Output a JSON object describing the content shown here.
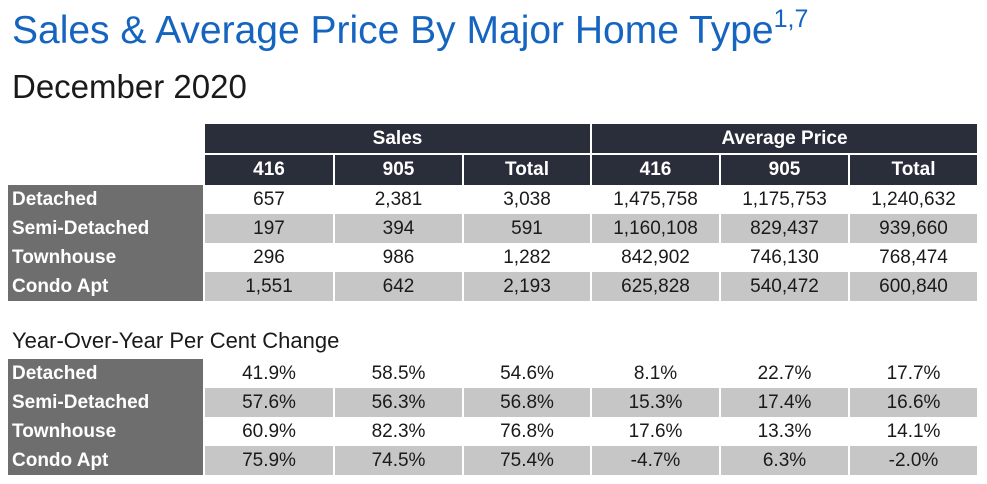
{
  "header": {
    "title": "Sales & Average Price By Major Home Type",
    "title_superscript": "1,7",
    "subtitle": "December 2020"
  },
  "sales_table": {
    "groups": [
      "Sales",
      "Average Price"
    ],
    "columns": [
      "416",
      "905",
      "Total",
      "416",
      "905",
      "Total"
    ],
    "rows": [
      {
        "label": "Detached",
        "values": [
          "657",
          "2,381",
          "3,038",
          "1,475,758",
          "1,175,753",
          "1,240,632"
        ]
      },
      {
        "label": "Semi-Detached",
        "values": [
          "197",
          "394",
          "591",
          "1,160,108",
          "829,437",
          "939,660"
        ]
      },
      {
        "label": "Townhouse",
        "values": [
          "296",
          "986",
          "1,282",
          "842,902",
          "746,130",
          "768,474"
        ]
      },
      {
        "label": "Condo Apt",
        "values": [
          "1,551",
          "642",
          "2,193",
          "625,828",
          "540,472",
          "600,840"
        ]
      }
    ]
  },
  "yoy_table": {
    "title": "Year-Over-Year Per Cent Change",
    "rows": [
      {
        "label": "Detached",
        "values": [
          "41.9%",
          "58.5%",
          "54.6%",
          "8.1%",
          "22.7%",
          "17.7%"
        ]
      },
      {
        "label": "Semi-Detached",
        "values": [
          "57.6%",
          "56.3%",
          "56.8%",
          "15.3%",
          "17.4%",
          "16.6%"
        ]
      },
      {
        "label": "Townhouse",
        "values": [
          "60.9%",
          "82.3%",
          "76.8%",
          "17.6%",
          "13.3%",
          "14.1%"
        ]
      },
      {
        "label": "Condo Apt",
        "values": [
          "75.9%",
          "74.5%",
          "75.4%",
          "-4.7%",
          "6.3%",
          "-2.0%"
        ]
      }
    ]
  },
  "colors": {
    "title_blue": "#1565c0",
    "header_dark": "#2a2e3a",
    "row_label_gray": "#6e6e6e",
    "alt_row_gray": "#c6c6c6"
  }
}
